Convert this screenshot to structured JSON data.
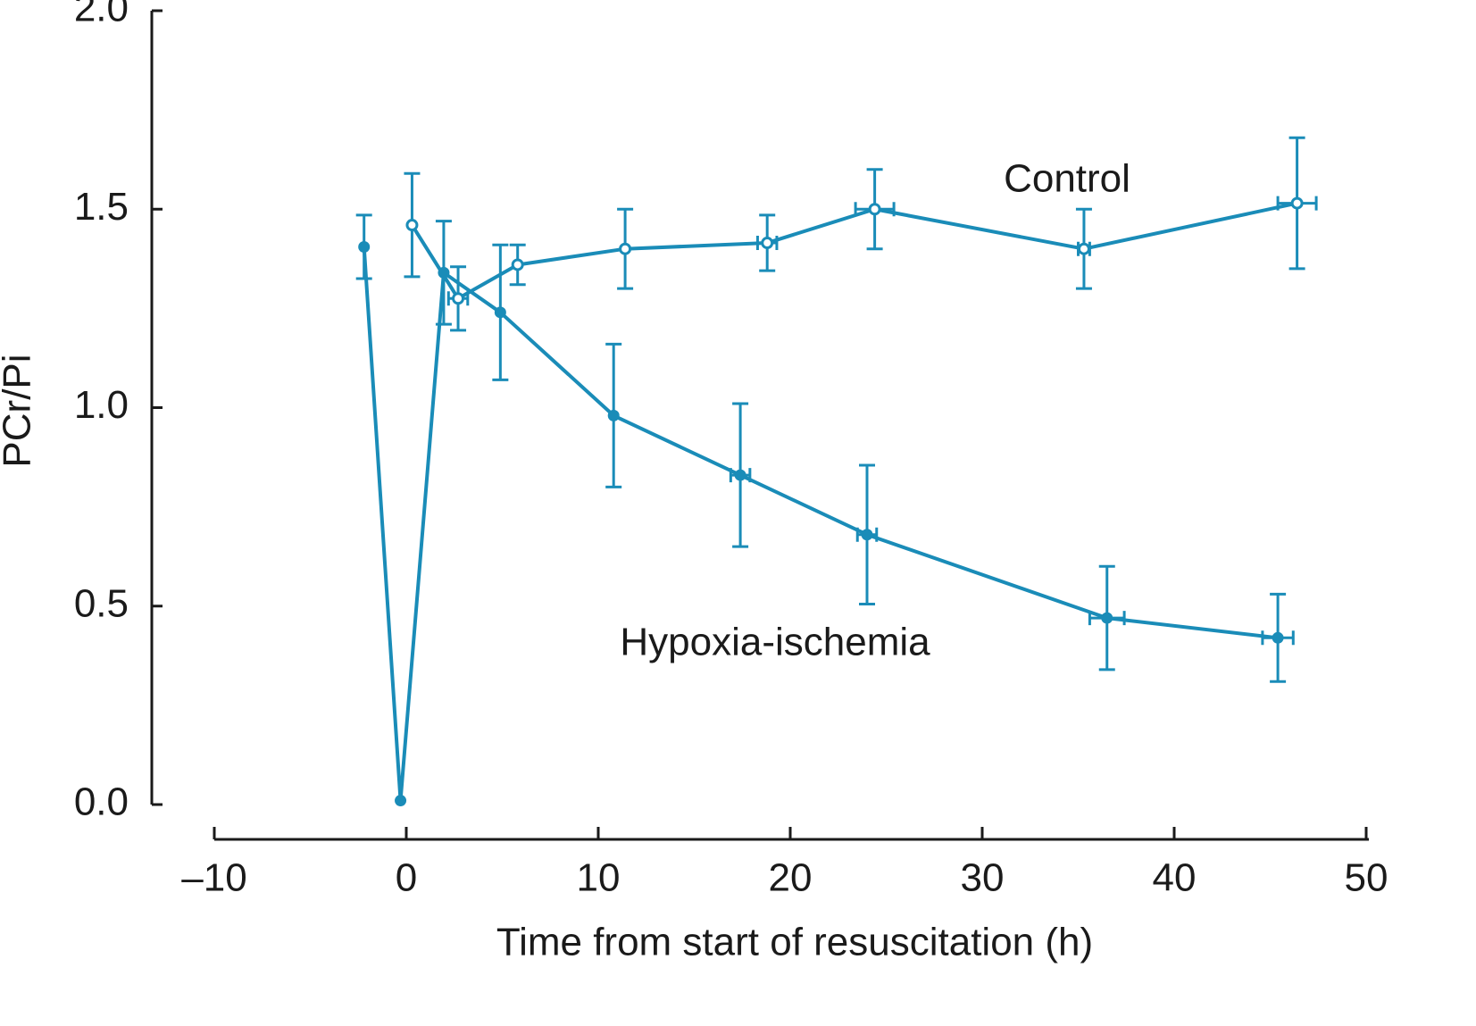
{
  "chart_data": {
    "type": "line",
    "x_label": "Time from start of resuscitation (h)",
    "y_label": "PCr/Pi",
    "xlim": [
      -10,
      50
    ],
    "ylim": [
      0,
      2.0
    ],
    "xticks": [
      {
        "value": -10,
        "label": "–10"
      },
      0,
      10,
      20,
      30,
      40,
      50
    ],
    "yticks": [
      {
        "value": 0,
        "label": "0.0"
      },
      0.5,
      {
        "value": 1,
        "label": "1.0"
      },
      1.5,
      {
        "value": 2,
        "label": "2.0"
      }
    ],
    "series": [
      {
        "name": "Control",
        "color": "#1a8cb8",
        "marker": "open",
        "x": [
          0.3,
          2.7,
          5.8,
          11.4,
          18.8,
          24.4,
          35.3,
          46.4
        ],
        "values": [
          1.46,
          1.275,
          1.36,
          1.4,
          1.415,
          1.5,
          1.4,
          1.515
        ],
        "yerr": [
          0.13,
          0.08,
          0.05,
          0.1,
          0.07,
          0.1,
          0.1,
          0.165
        ],
        "xerr": [
          null,
          0.5,
          null,
          null,
          0.5,
          1.0,
          0.3,
          1.0
        ]
      },
      {
        "name": "Hypoxia-ischemia",
        "color": "#1a8cb8",
        "marker": "filled",
        "x": [
          -2.2,
          -0.3,
          1.95,
          4.9,
          10.8,
          17.4,
          24.0,
          36.5,
          45.4
        ],
        "values": [
          1.405,
          0.01,
          1.34,
          1.24,
          0.98,
          0.83,
          0.68,
          0.47,
          0.42
        ],
        "yerr": [
          0.08,
          null,
          0.13,
          0.17,
          0.18,
          0.18,
          0.175,
          0.13,
          0.11
        ],
        "xerr": [
          null,
          null,
          null,
          null,
          null,
          0.5,
          0.5,
          0.9,
          0.8
        ]
      }
    ]
  }
}
